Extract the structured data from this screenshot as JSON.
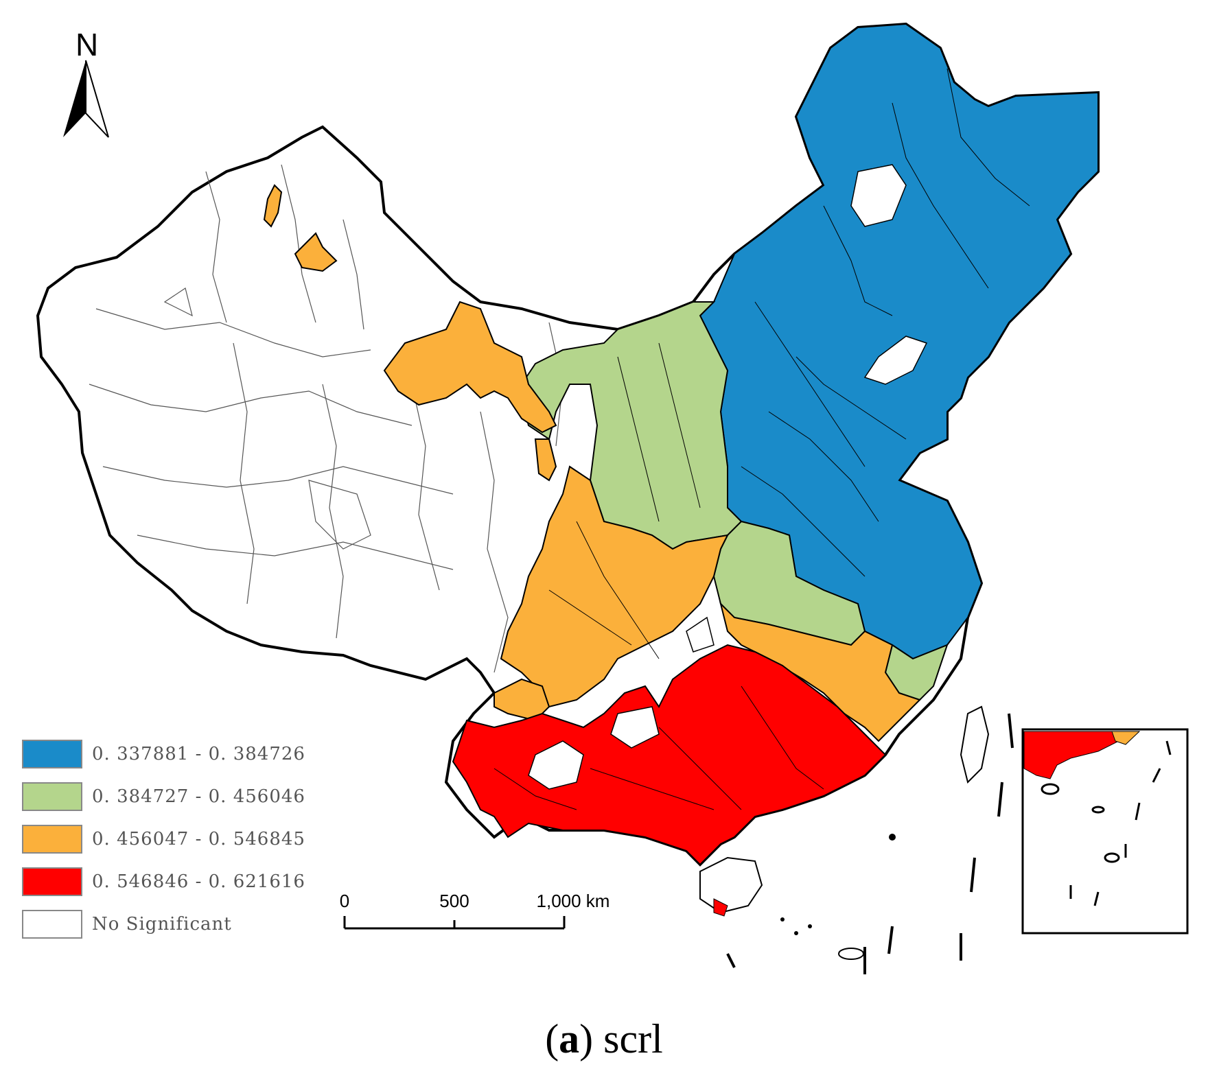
{
  "north_label": "N",
  "legend": [
    {
      "label": "0. 337881 - 0. 384726",
      "color": "#1a8bc9"
    },
    {
      "label": "0. 384727 - 0. 456046",
      "color": "#b4d58c"
    },
    {
      "label": "0. 456047 - 0. 546845",
      "color": "#fbb03b"
    },
    {
      "label": "0. 546846 - 0. 621616",
      "color": "#ff0000"
    },
    {
      "label": "No Significant",
      "color": "#ffffff"
    }
  ],
  "scale_bar": {
    "labels": [
      "0",
      "500",
      "1,000 km"
    ]
  },
  "caption": {
    "letter": "a",
    "text": "scrl"
  },
  "colors": {
    "blue": "#1a8bc9",
    "green": "#b4d58c",
    "orange": "#fbb03b",
    "red": "#ff0000",
    "outline": "#000000"
  }
}
